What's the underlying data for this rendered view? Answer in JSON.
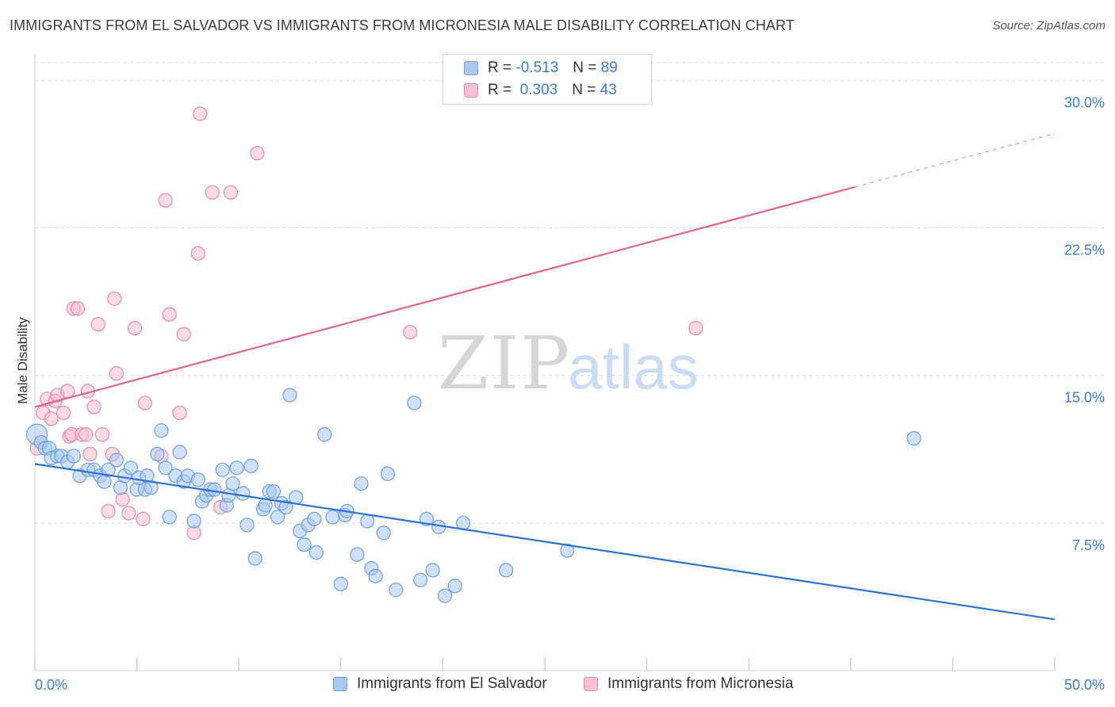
{
  "title": "IMMIGRANTS FROM EL SALVADOR VS IMMIGRANTS FROM MICRONESIA MALE DISABILITY CORRELATION CHART",
  "source": "Source: ZipAtlas.com",
  "watermark": {
    "zip": "ZIP",
    "atlas": "atlas"
  },
  "legend": {
    "r_label": "R =",
    "n_label": "N =",
    "series": [
      {
        "r": "-0.513",
        "n": "89"
      },
      {
        "r": "0.303",
        "n": "43"
      }
    ]
  },
  "colors": {
    "blue_fill": "#a9c8f0",
    "blue_stroke": "#6f9fdc",
    "blue_line": "#2f72d4",
    "pink_fill": "#f7bfd0",
    "pink_stroke": "#e98aa8",
    "pink_line": "#e0648f",
    "tick_text": "#3b7dd8",
    "grid": "#dddddd"
  },
  "chart_data": {
    "type": "scatter",
    "title": "IMMIGRANTS FROM EL SALVADOR VS IMMIGRANTS FROM MICRONESIA MALE DISABILITY CORRELATION CHART",
    "xlabel": "",
    "ylabel": "Male Disability",
    "xlim": [
      0,
      50
    ],
    "ylim": [
      0,
      30.9
    ],
    "x_tick_labels": [
      "0.0%",
      "50.0%"
    ],
    "y_ticks": [
      7.5,
      15.0,
      22.5,
      30.0
    ],
    "y_tick_labels": [
      "7.5%",
      "15.0%",
      "22.5%",
      "30.0%"
    ],
    "grid": "horizontal dashed",
    "legend_position": "top-center",
    "series": [
      {
        "name": "Immigrants from El Salvador",
        "color": "#a9c8f0",
        "trend": {
          "x": [
            0,
            50
          ],
          "y": [
            10.5,
            2.6
          ],
          "solid_to": 50
        },
        "points": [
          [
            0.1,
            12.0
          ],
          [
            0.3,
            11.6
          ],
          [
            0.5,
            11.3
          ],
          [
            0.7,
            11.3
          ],
          [
            0.8,
            10.8
          ],
          [
            1.1,
            10.9
          ],
          [
            1.3,
            10.9
          ],
          [
            1.6,
            10.6
          ],
          [
            1.9,
            10.9
          ],
          [
            2.2,
            9.9
          ],
          [
            2.6,
            10.2
          ],
          [
            2.9,
            10.2
          ],
          [
            3.2,
            9.9
          ],
          [
            3.4,
            9.6
          ],
          [
            3.6,
            10.2
          ],
          [
            4.0,
            10.7
          ],
          [
            4.2,
            9.3
          ],
          [
            4.4,
            9.9
          ],
          [
            4.7,
            10.3
          ],
          [
            5.0,
            9.2
          ],
          [
            5.1,
            9.8
          ],
          [
            5.4,
            9.2
          ],
          [
            5.5,
            9.9
          ],
          [
            5.7,
            9.3
          ],
          [
            6.0,
            11.0
          ],
          [
            6.2,
            12.2
          ],
          [
            6.4,
            10.3
          ],
          [
            6.6,
            7.8
          ],
          [
            6.9,
            9.9
          ],
          [
            7.1,
            11.1
          ],
          [
            7.3,
            9.6
          ],
          [
            7.5,
            9.9
          ],
          [
            7.8,
            7.6
          ],
          [
            8.0,
            9.7
          ],
          [
            8.2,
            8.6
          ],
          [
            8.4,
            8.9
          ],
          [
            8.6,
            9.2
          ],
          [
            8.8,
            9.2
          ],
          [
            9.2,
            10.2
          ],
          [
            9.4,
            8.4
          ],
          [
            9.5,
            8.9
          ],
          [
            9.7,
            9.5
          ],
          [
            9.9,
            10.3
          ],
          [
            10.2,
            9.0
          ],
          [
            10.4,
            7.4
          ],
          [
            10.6,
            10.4
          ],
          [
            10.8,
            5.7
          ],
          [
            11.2,
            8.2
          ],
          [
            11.3,
            8.4
          ],
          [
            11.5,
            9.1
          ],
          [
            11.7,
            9.1
          ],
          [
            11.9,
            7.8
          ],
          [
            12.1,
            8.5
          ],
          [
            12.3,
            8.3
          ],
          [
            12.5,
            14.0
          ],
          [
            12.8,
            8.8
          ],
          [
            13.0,
            7.1
          ],
          [
            13.2,
            6.4
          ],
          [
            13.4,
            7.4
          ],
          [
            13.7,
            7.7
          ],
          [
            13.8,
            6.0
          ],
          [
            14.2,
            12.0
          ],
          [
            14.6,
            7.8
          ],
          [
            15.0,
            4.4
          ],
          [
            15.2,
            7.9
          ],
          [
            15.3,
            8.1
          ],
          [
            15.8,
            5.9
          ],
          [
            16.0,
            9.5
          ],
          [
            16.3,
            7.6
          ],
          [
            16.5,
            5.2
          ],
          [
            16.7,
            4.8
          ],
          [
            17.1,
            7.0
          ],
          [
            17.3,
            10.0
          ],
          [
            17.7,
            4.1
          ],
          [
            18.6,
            13.6
          ],
          [
            18.9,
            4.6
          ],
          [
            19.2,
            7.7
          ],
          [
            19.5,
            5.1
          ],
          [
            19.8,
            7.3
          ],
          [
            20.1,
            3.8
          ],
          [
            20.6,
            4.3
          ],
          [
            21.0,
            7.5
          ],
          [
            23.1,
            5.1
          ],
          [
            26.1,
            6.1
          ],
          [
            43.1,
            11.8
          ]
        ]
      },
      {
        "name": "Immigrants from Micronesia",
        "color": "#f7bfd0",
        "trend": {
          "x": [
            0,
            50
          ],
          "y": [
            13.4,
            27.3
          ],
          "solid_to": 40.2
        },
        "points": [
          [
            0.1,
            11.3
          ],
          [
            0.4,
            13.1
          ],
          [
            0.6,
            13.8
          ],
          [
            0.8,
            12.8
          ],
          [
            1.0,
            13.7
          ],
          [
            1.1,
            14.0
          ],
          [
            1.4,
            13.1
          ],
          [
            1.6,
            14.2
          ],
          [
            1.7,
            11.9
          ],
          [
            1.8,
            12.0
          ],
          [
            1.9,
            18.4
          ],
          [
            2.1,
            18.4
          ],
          [
            2.3,
            12.0
          ],
          [
            2.5,
            12.0
          ],
          [
            2.6,
            14.2
          ],
          [
            2.7,
            11.0
          ],
          [
            2.9,
            13.4
          ],
          [
            3.1,
            17.6
          ],
          [
            3.3,
            12.0
          ],
          [
            3.6,
            8.1
          ],
          [
            3.8,
            11.0
          ],
          [
            3.9,
            18.9
          ],
          [
            4.0,
            15.1
          ],
          [
            4.3,
            8.7
          ],
          [
            4.6,
            8.0
          ],
          [
            4.9,
            17.4
          ],
          [
            5.3,
            7.7
          ],
          [
            5.4,
            13.6
          ],
          [
            6.2,
            10.9
          ],
          [
            6.4,
            23.9
          ],
          [
            6.6,
            18.1
          ],
          [
            7.1,
            13.1
          ],
          [
            7.3,
            17.1
          ],
          [
            7.8,
            7.0
          ],
          [
            8.0,
            21.2
          ],
          [
            8.1,
            28.3
          ],
          [
            8.7,
            24.3
          ],
          [
            9.1,
            8.3
          ],
          [
            9.6,
            24.3
          ],
          [
            10.9,
            26.3
          ],
          [
            18.4,
            17.2
          ],
          [
            32.4,
            17.4
          ]
        ]
      }
    ]
  }
}
